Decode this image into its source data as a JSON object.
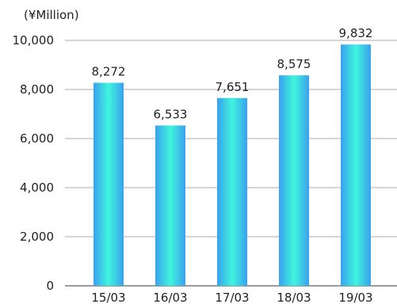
{
  "chart_data": {
    "type": "bar",
    "unit_label": "(¥Million)",
    "categories": [
      "15/03",
      "16/03",
      "17/03",
      "18/03",
      "19/03"
    ],
    "values": [
      8272,
      6533,
      7651,
      8575,
      9832
    ],
    "value_labels": [
      "8,272",
      "6,533",
      "7,651",
      "8,575",
      "9,832"
    ],
    "ylim": [
      0,
      10000
    ],
    "yticks": [
      0,
      2000,
      4000,
      6000,
      8000,
      10000
    ],
    "ytick_labels": [
      "0",
      "2,000",
      "4,000",
      "6,000",
      "8,000",
      "10,000"
    ],
    "grid": true,
    "colors": {
      "bar_edge": "#3aa0ee",
      "bar_center": "#3ff5de",
      "gridline": "#c8c8c8",
      "axis": "#9a9a9a"
    }
  }
}
